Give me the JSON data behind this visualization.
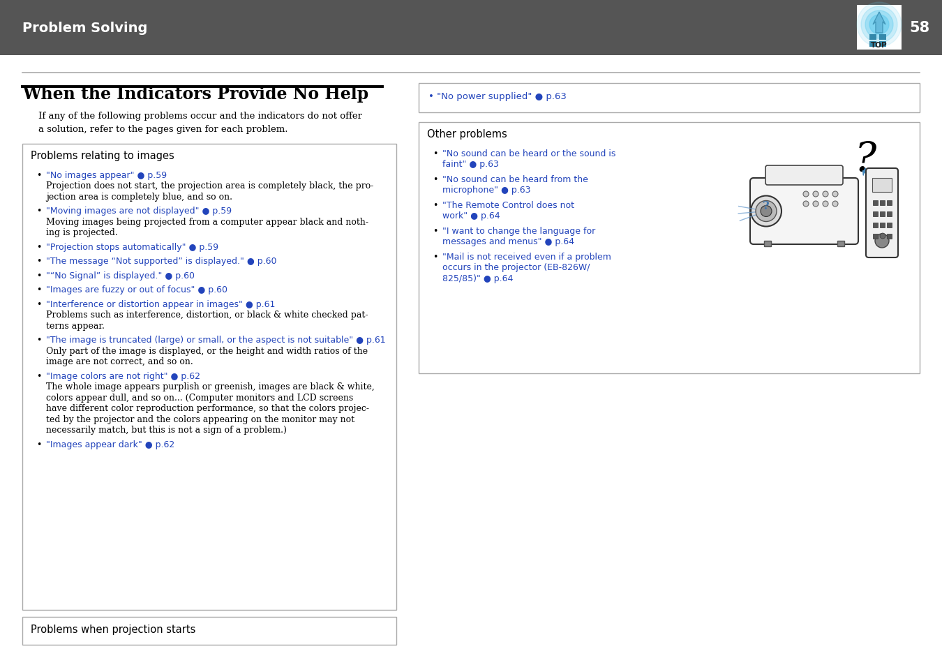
{
  "header_bg": "#555555",
  "header_text": "Problem Solving",
  "header_text_color": "#ffffff",
  "header_page_num": "58",
  "bg_color": "#ffffff",
  "title": "When the Indicators Provide No Help",
  "title_color": "#000000",
  "intro_text": "If any of the following problems occur and the indicators do not offer\na solution, refer to the pages given for each problem.",
  "link_color": "#2244bb",
  "body_color": "#000000",
  "box1_title": "Problems relating to images",
  "box1_items": [
    {
      "link": "\"No images appear\" ● p.59",
      "desc": "Projection does not start, the projection area is completely black, the pro-\njection area is completely blue, and so on."
    },
    {
      "link": "\"Moving images are not displayed\" ● p.59",
      "desc": "Moving images being projected from a computer appear black and noth-\ning is projected."
    },
    {
      "link": "\"Projection stops automatically\" ● p.59",
      "desc": ""
    },
    {
      "link": "\"The message “Not supported” is displayed.\" ● p.60",
      "desc": ""
    },
    {
      "link": "\"“No Signal” is displayed.\" ● p.60",
      "desc": ""
    },
    {
      "link": "\"Images are fuzzy or out of focus\" ● p.60",
      "desc": ""
    },
    {
      "link": "\"Interference or distortion appear in images\" ● p.61",
      "desc": "Problems such as interference, distortion, or black & white checked pat-\nterns appear."
    },
    {
      "link": "\"The image is truncated (large) or small, or the aspect is not suitable\" ● p.61",
      "desc": "Only part of the image is displayed, or the height and width ratios of the\nimage are not correct, and so on."
    },
    {
      "link": "\"Image colors are not right\" ● p.62",
      "desc": "The whole image appears purplish or greenish, images are black & white,\ncolors appear dull, and so on... (Computer monitors and LCD screens\nhave different color reproduction performance, so that the colors projec-\nted by the projector and the colors appearing on the monitor may not\nnecessarily match, but this is not a sign of a problem.)"
    },
    {
      "link": "\"Images appear dark\" ● p.62",
      "desc": ""
    }
  ],
  "box2_title": "Problems when projection starts",
  "box3_title": "Other problems",
  "power_link": "• \"No power supplied\" ● p.63",
  "box3_items": [
    {
      "link": "\"No sound can be heard or the sound is\nfaint\" ● p.63",
      "desc": ""
    },
    {
      "link": "\"No sound can be heard from the\nmicrophone\" ● p.63",
      "desc": ""
    },
    {
      "link": "\"The Remote Control does not\nwork\" ● p.64",
      "desc": ""
    },
    {
      "link": "\"I want to change the language for\nmessages and menus\" ● p.64",
      "desc": ""
    },
    {
      "link": "\"Mail is not received even if a problem\noccurs in the projector (EB-826W/\n825/85)\" ● p.64",
      "desc": ""
    }
  ]
}
